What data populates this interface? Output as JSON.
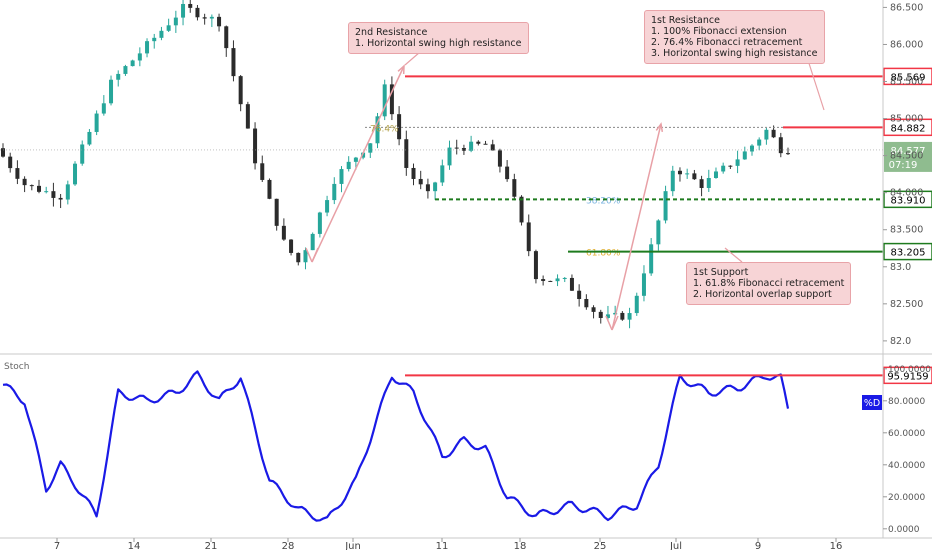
{
  "chart_data": [
    {
      "type": "candlestick",
      "title": "",
      "y_ticks": [
        82.0,
        82.5,
        83.0,
        83.5,
        84.0,
        84.5,
        85.0,
        85.5,
        86.0,
        86.5
      ],
      "y_tick_labels": [
        "82.0",
        "82.500",
        "83.0",
        "83.500",
        "84.000",
        "84.500",
        "85.000",
        "85.500",
        "86.000",
        "86.500"
      ],
      "ylim": [
        81.85,
        86.6
      ],
      "x_tick_labels": [
        "7",
        "14",
        "21",
        "28",
        "Jun",
        "11",
        "18",
        "25",
        "Jul",
        "9",
        "16"
      ],
      "key_points": [
        {
          "t": 0,
          "v": 84.6
        },
        {
          "t": 4,
          "v": 84.1
        },
        {
          "t": 9,
          "v": 83.95
        },
        {
          "t": 16,
          "v": 85.5
        },
        {
          "t": 26,
          "v": 86.5
        },
        {
          "t": 31,
          "v": 86.3
        },
        {
          "t": 36,
          "v": 84.4
        },
        {
          "t": 40,
          "v": 83.3
        },
        {
          "t": 42,
          "v": 83.05
        },
        {
          "t": 47,
          "v": 84.2
        },
        {
          "t": 52,
          "v": 84.7
        },
        {
          "t": 54,
          "v": 85.45
        },
        {
          "t": 57,
          "v": 84.3
        },
        {
          "t": 60,
          "v": 83.95
        },
        {
          "t": 63,
          "v": 84.6
        },
        {
          "t": 68,
          "v": 84.65
        },
        {
          "t": 71,
          "v": 84.2
        },
        {
          "t": 75,
          "v": 82.85
        },
        {
          "t": 79,
          "v": 82.8
        },
        {
          "t": 84,
          "v": 82.3
        },
        {
          "t": 88,
          "v": 82.35
        },
        {
          "t": 91,
          "v": 83.3
        },
        {
          "t": 94,
          "v": 84.35
        },
        {
          "t": 98,
          "v": 84.1
        },
        {
          "t": 104,
          "v": 84.55
        },
        {
          "t": 107,
          "v": 84.85
        },
        {
          "t": 109,
          "v": 84.58
        }
      ],
      "levels": [
        {
          "value": 85.569,
          "label": "85.569",
          "color": "#f23645",
          "style": "solid"
        },
        {
          "value": 84.882,
          "label": "84.882",
          "color": "#f23645",
          "style": "solid"
        },
        {
          "value": 83.91,
          "label": "83.910",
          "color": "#1e7b1e",
          "style": "dashed"
        },
        {
          "value": 83.205,
          "label": "83.205",
          "color": "#1e7b1e",
          "style": "solid"
        }
      ],
      "last_price": {
        "value": 84.577,
        "label": "84.577",
        "countdown": "07:19",
        "color": "#8fbc8f"
      },
      "fib_labels": [
        {
          "value": 84.882,
          "label": "76.4%"
        },
        {
          "value": 83.91,
          "label": "38.20%"
        },
        {
          "value": 83.205,
          "label": "61.80%"
        }
      ],
      "annotations": [
        {
          "id": "res2",
          "lines": [
            "2nd Resistance",
            "1. Horizontal swing high resistance"
          ]
        },
        {
          "id": "res1",
          "lines": [
            "1st Resistance",
            "1. 100% Fibonacci extension",
            "2. 76.4% Fibonacci retracement",
            "3. Horizontal swing high resistance"
          ]
        },
        {
          "id": "sup1",
          "lines": [
            "1st Support",
            "1. 61.8% Fibonacci retracement",
            "2. Horizontal overlap support"
          ]
        }
      ]
    },
    {
      "type": "line",
      "title": "Stoch",
      "series": [
        {
          "name": "%D",
          "color": "#1a1ae6"
        }
      ],
      "y_ticks": [
        0,
        20,
        40,
        60,
        80,
        100
      ],
      "y_tick_labels": [
        "0.0000",
        "20.0000",
        "40.0000",
        "60.0000",
        "80.0000",
        "100.0000"
      ],
      "ylim": [
        -2,
        108
      ],
      "key_points": [
        {
          "t": 0,
          "v": 90
        },
        {
          "t": 3,
          "v": 80
        },
        {
          "t": 6,
          "v": 25
        },
        {
          "t": 8,
          "v": 40
        },
        {
          "t": 10,
          "v": 28
        },
        {
          "t": 13,
          "v": 8
        },
        {
          "t": 16,
          "v": 85
        },
        {
          "t": 20,
          "v": 80
        },
        {
          "t": 24,
          "v": 85
        },
        {
          "t": 27,
          "v": 96
        },
        {
          "t": 30,
          "v": 80
        },
        {
          "t": 33,
          "v": 95
        },
        {
          "t": 37,
          "v": 30
        },
        {
          "t": 41,
          "v": 12
        },
        {
          "t": 45,
          "v": 5
        },
        {
          "t": 49,
          "v": 30
        },
        {
          "t": 54,
          "v": 96
        },
        {
          "t": 57,
          "v": 85
        },
        {
          "t": 61,
          "v": 45
        },
        {
          "t": 64,
          "v": 55
        },
        {
          "t": 67,
          "v": 50
        },
        {
          "t": 70,
          "v": 20
        },
        {
          "t": 74,
          "v": 8
        },
        {
          "t": 79,
          "v": 15
        },
        {
          "t": 84,
          "v": 8
        },
        {
          "t": 88,
          "v": 15
        },
        {
          "t": 91,
          "v": 40
        },
        {
          "t": 94,
          "v": 95
        },
        {
          "t": 98,
          "v": 85
        },
        {
          "t": 102,
          "v": 88
        },
        {
          "t": 106,
          "v": 96
        },
        {
          "t": 108,
          "v": 94
        },
        {
          "t": 109,
          "v": 75
        }
      ],
      "levels": [
        {
          "value": 95.9159,
          "label": "95.9159",
          "color": "#f23645"
        }
      ],
      "indicator_value_label": "%D"
    }
  ]
}
